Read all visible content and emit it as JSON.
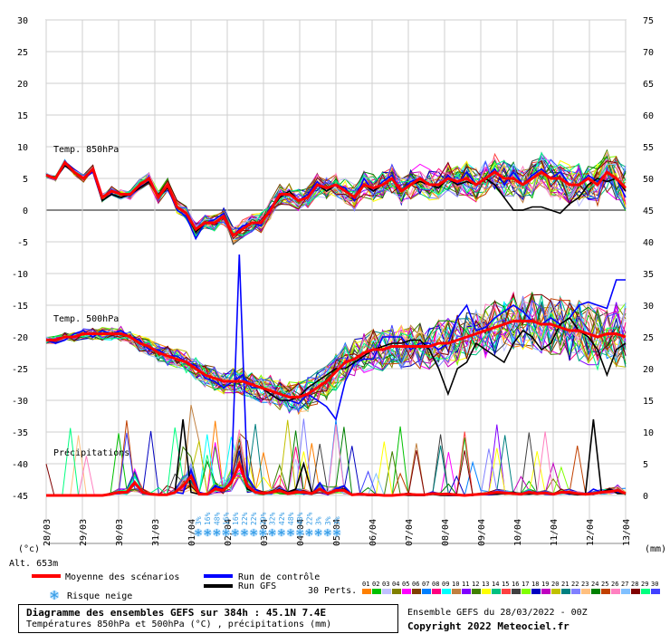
{
  "chart_data": {
    "type": "line",
    "left_axis": {
      "ticks": [
        30,
        25,
        20,
        15,
        10,
        5,
        0,
        -5,
        -10,
        -15,
        -20,
        -25,
        -30,
        -35,
        -40,
        -45
      ],
      "label": "(°c)"
    },
    "right_axis": {
      "ticks": [
        75,
        70,
        65,
        60,
        55,
        50,
        45,
        40,
        35,
        30,
        25,
        20,
        15,
        10,
        5,
        0
      ],
      "label": "(mm)"
    },
    "x_ticks": [
      "28/03",
      "29/03",
      "30/03",
      "31/03",
      "01/04",
      "02/04",
      "03/04",
      "04/04",
      "05/04",
      "06/04",
      "07/04",
      "08/04",
      "09/04",
      "10/04",
      "11/04",
      "12/04",
      "13/04"
    ],
    "section_labels": {
      "t850": "Temp. 850hPa",
      "t500": "Temp. 500hPa",
      "precip": "Précipitations"
    },
    "altitude": "Alt. 653m",
    "series": [
      {
        "name": "Moyenne des scénarios",
        "color": "#ff0000",
        "t850": [
          5.5,
          5,
          7.5,
          6,
          5,
          6.5,
          2,
          3,
          2.5,
          2.5,
          4,
          5,
          2,
          4,
          0.5,
          -0.5,
          -3,
          -2,
          -2,
          -1,
          -4,
          -3,
          -2,
          -2,
          0,
          2.5,
          2.5,
          1.5,
          2,
          4,
          3.5,
          4,
          3,
          2,
          4,
          3.5,
          4,
          5,
          3,
          4,
          5,
          4,
          4,
          5,
          4.5,
          5,
          4,
          5,
          6,
          5,
          5,
          4,
          5,
          6,
          5,
          5,
          4,
          4,
          5,
          4,
          6,
          5,
          3.5
        ],
        "t500": [
          -20.5,
          -20.5,
          -20,
          -20,
          -19.5,
          -19.5,
          -19.5,
          -19.5,
          -19.5,
          -20,
          -21,
          -21.5,
          -22.5,
          -23,
          -23.5,
          -24,
          -25,
          -26,
          -26.5,
          -27,
          -27,
          -27,
          -27.5,
          -28,
          -28.5,
          -29,
          -29.5,
          -29.5,
          -29,
          -28,
          -27,
          -25.5,
          -24,
          -23.5,
          -22.5,
          -22,
          -22,
          -21.5,
          -21.5,
          -21.5,
          -21.5,
          -21.5,
          -21,
          -21,
          -20.5,
          -20,
          -19.5,
          -19,
          -18.5,
          -18,
          -17.5,
          -17.5,
          -17.5,
          -18,
          -18,
          -18.5,
          -19,
          -19,
          -19.5,
          -20,
          -19.5,
          -19.5,
          -20
        ],
        "precip": [
          0,
          0,
          0,
          0,
          0,
          0,
          0,
          0,
          0.2,
          0.5,
          0.5,
          2,
          0.5,
          0.2,
          0.1,
          0.1,
          0.5,
          1.5,
          3,
          0.2,
          0.2,
          1,
          0.8,
          2,
          5,
          1.5,
          0.5,
          0.3,
          0.5,
          0.8,
          0.3,
          0.5,
          0.5,
          0.3,
          1,
          0.3,
          0.8,
          0.8,
          0.1,
          0.2,
          0.1,
          0.1,
          0,
          0,
          0.1,
          0.2,
          0.1,
          0.1,
          0.3,
          0.2,
          0.2,
          0.1,
          0,
          0.1,
          0.2,
          0.3,
          0.5,
          0.4,
          0.3,
          0.2,
          0.5,
          0.3,
          0.4,
          0.2,
          0.5,
          0.5,
          0.3,
          0.2,
          0.3,
          0.5,
          0.6,
          0.8,
          0.3
        ]
      },
      {
        "name": "Run de contrôle",
        "color": "#0000ff",
        "t850": [
          5.5,
          5,
          7,
          6,
          5,
          6,
          1.5,
          2.5,
          2,
          2.5,
          3.5,
          4.5,
          2,
          3.5,
          0,
          -1,
          -4.5,
          -2,
          -1.5,
          -0.5,
          -4,
          -2.5,
          -2,
          -2.5,
          0.5,
          2,
          3,
          1.5,
          2.5,
          4.5,
          3,
          4,
          3.5,
          1.5,
          5,
          3,
          4.5,
          5.5,
          3,
          4.5,
          5,
          4,
          3.5,
          5.5,
          4,
          6,
          4,
          5,
          6.5,
          4,
          6,
          4,
          5.5,
          6.5,
          5,
          6,
          4,
          4,
          5.5,
          4.5,
          6,
          5,
          2
        ],
        "t500": [
          -20.5,
          -21,
          -20.5,
          -19.5,
          -19,
          -20,
          -19,
          -19.5,
          -19,
          -20,
          -20.5,
          -22,
          -22,
          -23,
          -23,
          -24,
          -24.5,
          -26.5,
          -27,
          -28,
          -27,
          -26,
          -28,
          -28,
          -29,
          -30,
          -30,
          -30.5,
          -29,
          -30,
          -31,
          -33,
          -27,
          -24,
          -23.5,
          -23.5,
          -20,
          -20,
          -20,
          -22,
          -21,
          -21,
          -22,
          -21,
          -17,
          -15,
          -19,
          -18.5,
          -17,
          -16,
          -15,
          -16,
          -17.5,
          -18,
          -17,
          -18,
          -17,
          -15,
          -14.5,
          -15,
          -15.5,
          -11,
          -11
        ],
        "precip": [
          0,
          0,
          0,
          0,
          0,
          0,
          0,
          0,
          0.3,
          0.5,
          0.5,
          2,
          0.5,
          0.2,
          0.2,
          0.1,
          0.5,
          0.3,
          4,
          0.5,
          0.2,
          1.5,
          1,
          2,
          38,
          3,
          1,
          0.2,
          0.5,
          1,
          0.4,
          0.5,
          0.3,
          0.2,
          2,
          0.1,
          1,
          1.5,
          0.1,
          0.1,
          0,
          0,
          0,
          0,
          0.1,
          0.1,
          0,
          0,
          0.5,
          0.1,
          0,
          0,
          0,
          0,
          0.2,
          0.1,
          0.2,
          0.5,
          0.3,
          0.1,
          0.5,
          0.5,
          0.2,
          0.1,
          0.5,
          0.2,
          0.3,
          0.1,
          1,
          0.5,
          1,
          0.5,
          0.3
        ]
      },
      {
        "name": "Run GFS",
        "color": "#000000",
        "t850": [
          5.5,
          5,
          7,
          6,
          5,
          6.5,
          1.5,
          2.5,
          2,
          2.5,
          3.5,
          4.5,
          2,
          3.5,
          0.5,
          -0.5,
          -3.5,
          -2,
          -2,
          -1,
          -4,
          -3,
          -2,
          -2,
          0,
          2,
          3,
          1.5,
          2,
          4,
          3,
          4,
          3,
          2,
          4,
          3,
          4,
          5,
          3,
          4,
          4.5,
          4,
          3.5,
          5,
          4,
          4.5,
          4,
          5,
          4,
          2,
          0,
          0,
          0.5,
          0.5,
          0,
          -0.5,
          1,
          2,
          4,
          5,
          4.5,
          5,
          3
        ],
        "t500": [
          -20.5,
          -20.5,
          -20,
          -20,
          -19.5,
          -19.5,
          -19.5,
          -19.5,
          -19.5,
          -20,
          -21,
          -21.5,
          -22.5,
          -23,
          -23.5,
          -24,
          -25,
          -26,
          -26.5,
          -27,
          -27,
          -27,
          -27.5,
          -28,
          -29,
          -30,
          -30,
          -29.5,
          -28,
          -27,
          -26,
          -25,
          -25,
          -24,
          -23,
          -22,
          -21.5,
          -21,
          -21,
          -20.5,
          -20.5,
          -22,
          -25,
          -29,
          -25,
          -24,
          -21,
          -22,
          -23,
          -24,
          -21,
          -19,
          -20,
          -22,
          -21,
          -18,
          -17,
          -19,
          -20,
          -22,
          -26,
          -22,
          -21
        ],
        "precip": [
          0,
          0,
          0,
          0,
          0,
          0,
          0,
          0,
          0.2,
          0.5,
          0.5,
          2,
          0.5,
          0.2,
          0.1,
          0.1,
          0.5,
          12,
          0.5,
          0.2,
          0.2,
          1,
          1,
          2,
          5,
          1,
          0.5,
          0.2,
          0.5,
          1,
          0.5,
          1,
          5,
          0.5,
          1,
          0.3,
          0.8,
          1,
          0.1,
          0.1,
          0,
          0,
          0,
          0,
          0.1,
          0,
          0,
          0,
          0.2,
          0,
          0,
          0,
          0,
          0,
          0.3,
          0.2,
          0.2,
          0.3,
          0.5,
          0.2,
          0.2,
          0.3,
          0.5,
          0.2,
          0.5,
          0.3,
          0.1,
          0.2,
          12,
          0.5,
          1,
          0.3,
          0.3
        ]
      }
    ],
    "snow_risk": {
      "label": "Risque neige",
      "percentages": [
        "3%",
        "16%",
        "48%",
        "16%",
        "16%",
        "22%",
        "22%",
        "29%",
        "32%",
        "42%",
        "48%",
        "48%",
        "22%",
        "3%",
        "3%",
        "3%"
      ]
    },
    "legend": {
      "mean": "Moyenne des scénarios",
      "control": "Run de contrôle",
      "gfs": "Run GFS",
      "perts": "30 Perts.",
      "perts_ids": [
        "01",
        "02",
        "03",
        "04",
        "05",
        "06",
        "07",
        "08",
        "09",
        "10",
        "11",
        "12",
        "13",
        "14",
        "15",
        "16",
        "17",
        "18",
        "19",
        "20",
        "21",
        "22",
        "23",
        "24",
        "25",
        "26",
        "27",
        "28",
        "29",
        "30"
      ],
      "perts_colors": [
        "#ff8000",
        "#00c000",
        "#c0c0ff",
        "#808000",
        "#ff00ff",
        "#804000",
        "#0080ff",
        "#ff0080",
        "#00ffff",
        "#c08040",
        "#8000ff",
        "#408000",
        "#ffff00",
        "#00c080",
        "#ff4040",
        "#404040",
        "#80ff00",
        "#0000c0",
        "#c000c0",
        "#c0c000",
        "#008080",
        "#8080ff",
        "#ffc080",
        "#008000",
        "#c04000",
        "#ff80c0",
        "#80c0ff",
        "#800000",
        "#00ff80",
        "#4040ff"
      ]
    }
  },
  "footer": {
    "title": "Diagramme des ensembles GEFS sur 384h : 45.1N 7.4E",
    "subtitle": "Températures 850hPa et 500hPa (°C) , précipitations (mm)",
    "run": "Ensemble GEFS du 28/03/2022 - 00Z",
    "copyright": "Copyright 2022 Meteociel.fr"
  }
}
